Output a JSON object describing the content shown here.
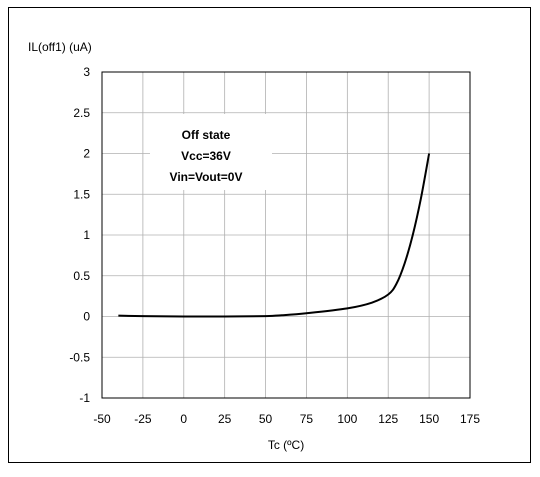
{
  "chart_data": {
    "type": "line",
    "title": "",
    "xlabel": "Tc (ºC)",
    "ylabel": "IL(off1) (uA)",
    "xlim": [
      -50,
      175
    ],
    "ylim": [
      -1,
      3
    ],
    "x_ticks": [
      -50,
      -25,
      0,
      25,
      50,
      75,
      100,
      125,
      150,
      175
    ],
    "y_ticks": [
      -1,
      -0.5,
      0,
      0.5,
      1,
      1.5,
      2,
      2.5,
      3
    ],
    "x_tick_labels": [
      "-50",
      "-25",
      "0",
      "25",
      "50",
      "75",
      "100",
      "125",
      "150",
      "175"
    ],
    "y_tick_labels": [
      "-1",
      "-0.5",
      "0",
      "0.5",
      "1",
      "1.5",
      "2",
      "2.5",
      "3"
    ],
    "grid": true,
    "annotation": [
      "Off state",
      "Vcc=36V",
      "Vin=Vout=0V"
    ],
    "series": [
      {
        "color": "#000000",
        "x": [
          -40,
          -25,
          0,
          25,
          50,
          60,
          75,
          100,
          115,
          125,
          130,
          135,
          140,
          145,
          150
        ],
        "y": [
          0.01,
          0.005,
          0.0,
          0.0,
          0.005,
          0.015,
          0.04,
          0.1,
          0.17,
          0.27,
          0.4,
          0.65,
          1.0,
          1.45,
          2.0
        ]
      }
    ]
  }
}
